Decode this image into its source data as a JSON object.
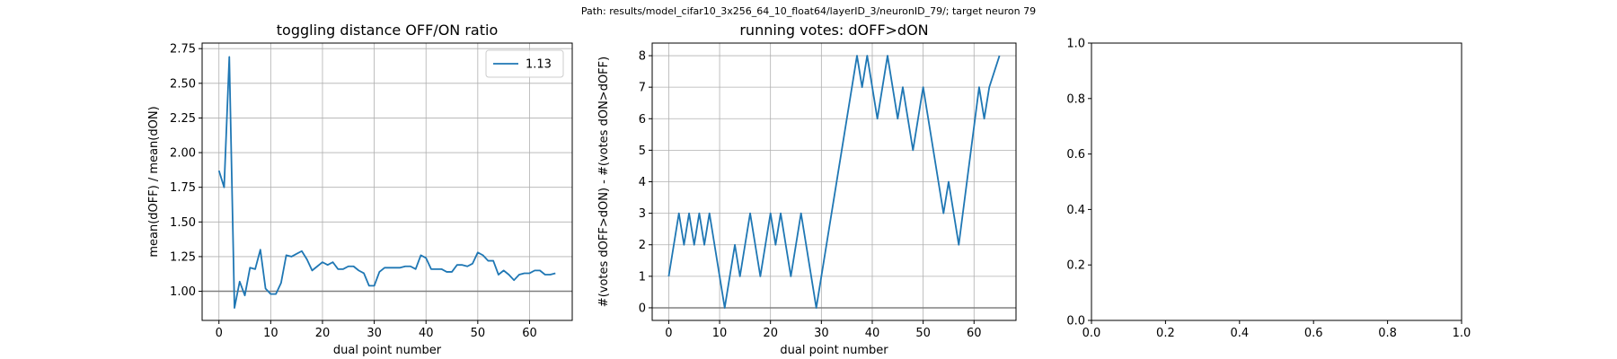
{
  "figure": {
    "suptitle": "Path: results/model_cifar10_3x256_64_10_float64/layerID_3/neuronID_79/; target neuron 79"
  },
  "colors": {
    "line": "#1f77b4",
    "grid": "#b0b0b0",
    "refline": "#808080",
    "axis": "#000000"
  },
  "chart_data": [
    {
      "type": "line",
      "title": "toggling distance OFF/ON ratio",
      "xlabel": "dual point number",
      "ylabel": "mean(dOFF) / mean(dON)",
      "xlim": [
        -3.25,
        68.25
      ],
      "ylim": [
        0.79,
        2.79
      ],
      "xticks": [
        0,
        10,
        20,
        30,
        40,
        50,
        60
      ],
      "yticks": [
        1.0,
        1.25,
        1.5,
        1.75,
        2.0,
        2.25,
        2.5,
        2.75
      ],
      "ytick_labels": [
        "1.00",
        "1.25",
        "1.50",
        "1.75",
        "2.00",
        "2.25",
        "2.50",
        "2.75"
      ],
      "grid": true,
      "legend": {
        "position": "upper right",
        "entries": [
          "1.13"
        ]
      },
      "hline": 1.0,
      "series": [
        {
          "name": "1.13",
          "x": [
            0,
            1,
            2,
            3,
            4,
            5,
            6,
            7,
            8,
            9,
            10,
            11,
            12,
            13,
            14,
            15,
            16,
            17,
            18,
            19,
            20,
            21,
            22,
            23,
            24,
            25,
            26,
            27,
            28,
            29,
            30,
            31,
            32,
            33,
            34,
            35,
            36,
            37,
            38,
            39,
            40,
            41,
            42,
            43,
            44,
            45,
            46,
            47,
            48,
            49,
            50,
            51,
            52,
            53,
            54,
            55,
            56,
            57,
            58,
            59,
            60,
            61,
            62,
            63,
            64,
            65
          ],
          "y": [
            1.87,
            1.75,
            2.69,
            0.88,
            1.07,
            0.97,
            1.17,
            1.16,
            1.3,
            1.02,
            0.98,
            0.98,
            1.06,
            1.26,
            1.25,
            1.27,
            1.29,
            1.23,
            1.15,
            1.18,
            1.21,
            1.19,
            1.21,
            1.16,
            1.16,
            1.18,
            1.18,
            1.15,
            1.13,
            1.04,
            1.04,
            1.14,
            1.17,
            1.17,
            1.17,
            1.17,
            1.18,
            1.18,
            1.16,
            1.26,
            1.24,
            1.16,
            1.16,
            1.16,
            1.14,
            1.14,
            1.19,
            1.19,
            1.18,
            1.2,
            1.28,
            1.26,
            1.22,
            1.22,
            1.12,
            1.15,
            1.12,
            1.08,
            1.12,
            1.13,
            1.13,
            1.15,
            1.15,
            1.12,
            1.12,
            1.13
          ]
        }
      ]
    },
    {
      "type": "line",
      "title": "running votes: dOFF>dON",
      "xlabel": "dual point number",
      "ylabel": "#(votes dOFF>dON) - #(votes dON>dOFF)",
      "xlim": [
        -3.25,
        68.25
      ],
      "ylim": [
        -0.4,
        8.4
      ],
      "xticks": [
        0,
        10,
        20,
        30,
        40,
        50,
        60
      ],
      "yticks": [
        0,
        1,
        2,
        3,
        4,
        5,
        6,
        7,
        8
      ],
      "ytick_labels": [
        "0",
        "1",
        "2",
        "3",
        "4",
        "5",
        "6",
        "7",
        "8"
      ],
      "grid": true,
      "hline": 0,
      "series": [
        {
          "name": "",
          "x": [
            0,
            2,
            3,
            4,
            5,
            6,
            7,
            8,
            11,
            13,
            14,
            16,
            18,
            20,
            21,
            22,
            24,
            26,
            29,
            37,
            38,
            39,
            41,
            43,
            45,
            46,
            48,
            50,
            54,
            55,
            57,
            61,
            62,
            63,
            65
          ],
          "y": [
            1,
            3,
            2,
            3,
            2,
            3,
            2,
            3,
            0,
            2,
            1,
            3,
            1,
            3,
            2,
            3,
            1,
            3,
            0,
            8,
            7,
            8,
            6,
            8,
            6,
            7,
            5,
            7,
            3,
            4,
            2,
            7,
            6,
            7,
            8
          ]
        }
      ]
    },
    {
      "type": "line",
      "title": "",
      "xlabel": "",
      "ylabel": "",
      "xlim": [
        0,
        1
      ],
      "ylim": [
        0,
        1
      ],
      "xticks": [
        0,
        0.2,
        0.4,
        0.6,
        0.8,
        1.0
      ],
      "yticks": [
        0,
        0.2,
        0.4,
        0.6,
        0.8,
        1.0
      ],
      "xtick_labels": [
        "0.0",
        "0.2",
        "0.4",
        "0.6",
        "0.8",
        "1.0"
      ],
      "ytick_labels": [
        "0.0",
        "0.2",
        "0.4",
        "0.6",
        "0.8",
        "1.0"
      ],
      "grid": false,
      "series": []
    }
  ]
}
